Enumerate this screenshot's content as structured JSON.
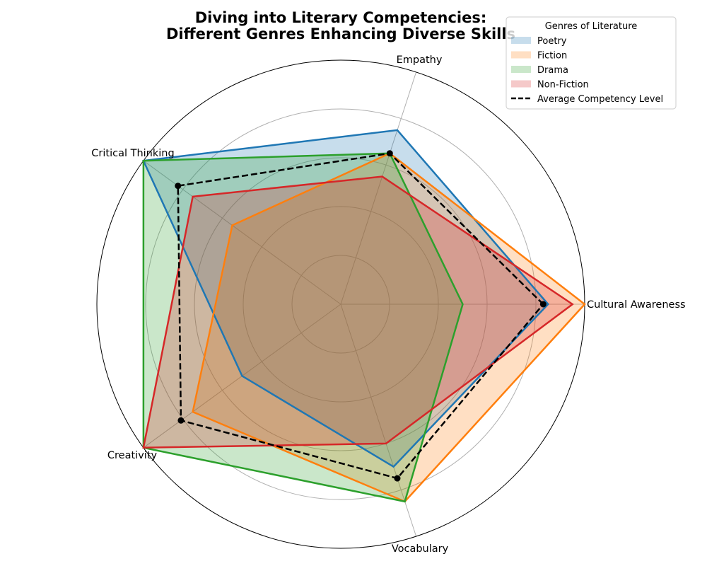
{
  "chart_data": {
    "type": "radar",
    "title": "Diving into Literary Competencies:",
    "subtitle": "Different Genres Enhancing Diverse Skills",
    "categories": [
      "Cultural Awareness",
      "Empathy",
      "Critical Thinking",
      "Creativity",
      "Vocabulary"
    ],
    "rlim": [
      0,
      100
    ],
    "grid": true,
    "series": [
      {
        "name": "Poetry",
        "values": [
          85,
          75,
          100,
          50,
          70
        ],
        "color": "#1f77b4",
        "fill_alpha": 0.25
      },
      {
        "name": "Fiction",
        "values": [
          100,
          65,
          55,
          75,
          85
        ],
        "color": "#ff7f0e",
        "fill_alpha": 0.25
      },
      {
        "name": "Drama",
        "values": [
          50,
          65,
          100,
          100,
          85
        ],
        "color": "#2ca02c",
        "fill_alpha": 0.25
      },
      {
        "name": "Non-Fiction",
        "values": [
          95,
          55,
          75,
          100,
          60
        ],
        "color": "#d62728",
        "fill_alpha": 0.25
      }
    ],
    "average": {
      "name": "Average Competency Level",
      "values": [
        83,
        65,
        82.5,
        81,
        75
      ],
      "color": "#000000",
      "style": "dashed"
    },
    "legend": {
      "title": "Genres of Literature",
      "placement": "top-right"
    }
  }
}
